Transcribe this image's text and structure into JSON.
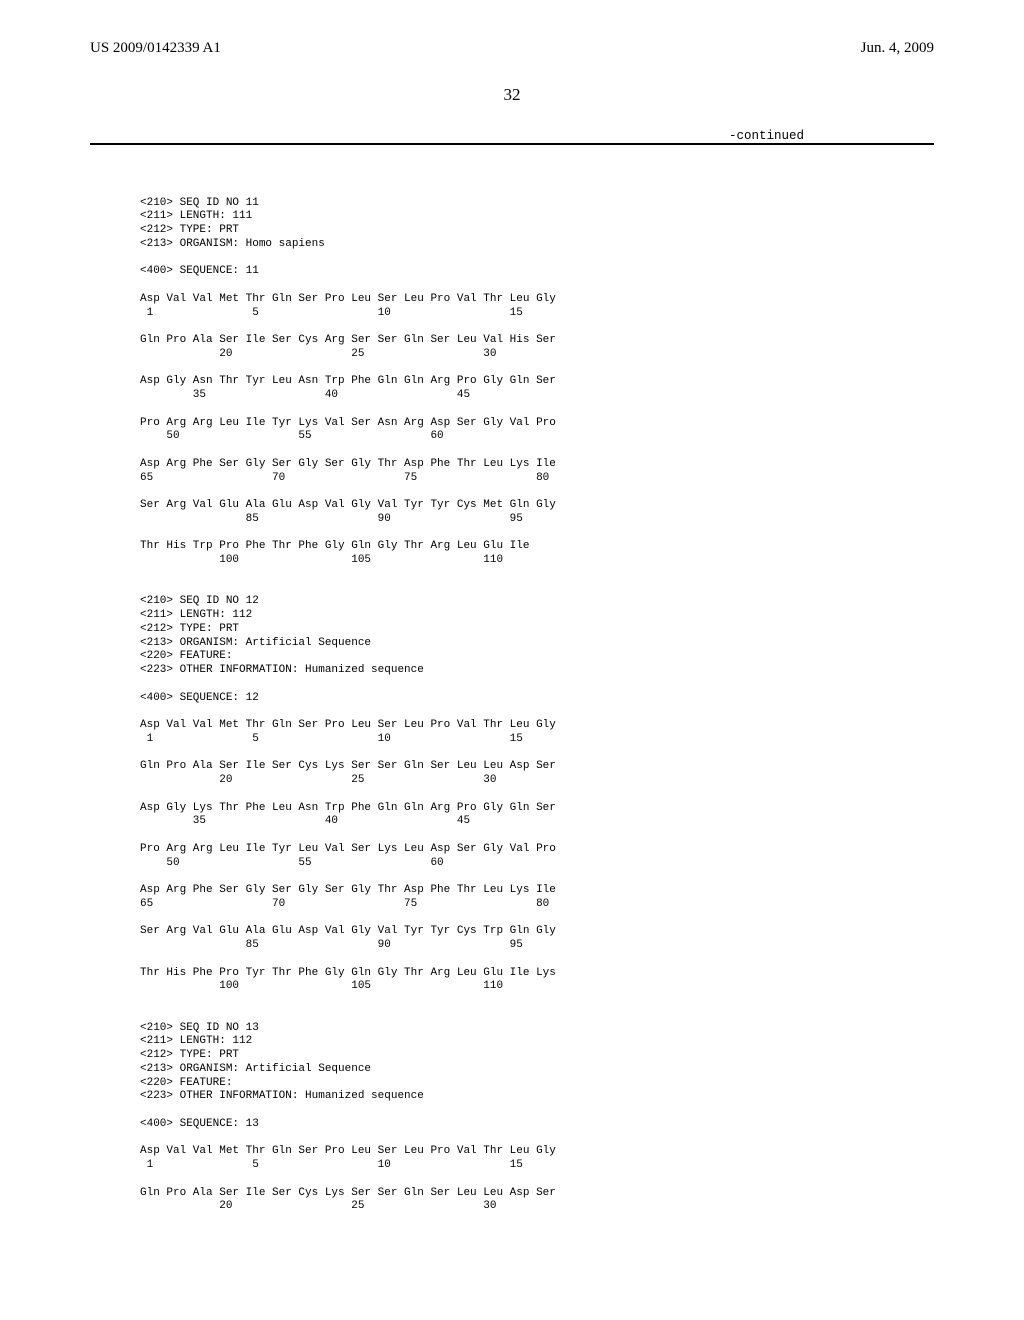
{
  "header": {
    "left": "US 2009/0142339 A1",
    "right": "Jun. 4, 2009"
  },
  "page_number": "32",
  "continued_label": "-continued",
  "sequences": [
    {
      "meta": [
        "<210> SEQ ID NO 11",
        "<211> LENGTH: 111",
        "<212> TYPE: PRT",
        "<213> ORGANISM: Homo sapiens"
      ],
      "seq_label": "<400> SEQUENCE: 11",
      "rows": [
        {
          "aa": "Asp Val Val Met Thr Gln Ser Pro Leu Ser Leu Pro Val Thr Leu Gly",
          "num": " 1               5                  10                  15"
        },
        {
          "aa": "Gln Pro Ala Ser Ile Ser Cys Arg Ser Ser Gln Ser Leu Val His Ser",
          "num": "            20                  25                  30"
        },
        {
          "aa": "Asp Gly Asn Thr Tyr Leu Asn Trp Phe Gln Gln Arg Pro Gly Gln Ser",
          "num": "        35                  40                  45"
        },
        {
          "aa": "Pro Arg Arg Leu Ile Tyr Lys Val Ser Asn Arg Asp Ser Gly Val Pro",
          "num": "    50                  55                  60"
        },
        {
          "aa": "Asp Arg Phe Ser Gly Ser Gly Ser Gly Thr Asp Phe Thr Leu Lys Ile",
          "num": "65                  70                  75                  80"
        },
        {
          "aa": "Ser Arg Val Glu Ala Glu Asp Val Gly Val Tyr Tyr Cys Met Gln Gly",
          "num": "                85                  90                  95"
        },
        {
          "aa": "Thr His Trp Pro Phe Thr Phe Gly Gln Gly Thr Arg Leu Glu Ile",
          "num": "            100                 105                 110"
        }
      ]
    },
    {
      "meta": [
        "<210> SEQ ID NO 12",
        "<211> LENGTH: 112",
        "<212> TYPE: PRT",
        "<213> ORGANISM: Artificial Sequence",
        "<220> FEATURE:",
        "<223> OTHER INFORMATION: Humanized sequence"
      ],
      "seq_label": "<400> SEQUENCE: 12",
      "rows": [
        {
          "aa": "Asp Val Val Met Thr Gln Ser Pro Leu Ser Leu Pro Val Thr Leu Gly",
          "num": " 1               5                  10                  15"
        },
        {
          "aa": "Gln Pro Ala Ser Ile Ser Cys Lys Ser Ser Gln Ser Leu Leu Asp Ser",
          "num": "            20                  25                  30"
        },
        {
          "aa": "Asp Gly Lys Thr Phe Leu Asn Trp Phe Gln Gln Arg Pro Gly Gln Ser",
          "num": "        35                  40                  45"
        },
        {
          "aa": "Pro Arg Arg Leu Ile Tyr Leu Val Ser Lys Leu Asp Ser Gly Val Pro",
          "num": "    50                  55                  60"
        },
        {
          "aa": "Asp Arg Phe Ser Gly Ser Gly Ser Gly Thr Asp Phe Thr Leu Lys Ile",
          "num": "65                  70                  75                  80"
        },
        {
          "aa": "Ser Arg Val Glu Ala Glu Asp Val Gly Val Tyr Tyr Cys Trp Gln Gly",
          "num": "                85                  90                  95"
        },
        {
          "aa": "Thr His Phe Pro Tyr Thr Phe Gly Gln Gly Thr Arg Leu Glu Ile Lys",
          "num": "            100                 105                 110"
        }
      ]
    },
    {
      "meta": [
        "<210> SEQ ID NO 13",
        "<211> LENGTH: 112",
        "<212> TYPE: PRT",
        "<213> ORGANISM: Artificial Sequence",
        "<220> FEATURE:",
        "<223> OTHER INFORMATION: Humanized sequence"
      ],
      "seq_label": "<400> SEQUENCE: 13",
      "rows": [
        {
          "aa": "Asp Val Val Met Thr Gln Ser Pro Leu Ser Leu Pro Val Thr Leu Gly",
          "num": " 1               5                  10                  15"
        },
        {
          "aa": "Gln Pro Ala Ser Ile Ser Cys Lys Ser Ser Gln Ser Leu Leu Asp Ser",
          "num": "            20                  25                  30"
        }
      ]
    }
  ]
}
